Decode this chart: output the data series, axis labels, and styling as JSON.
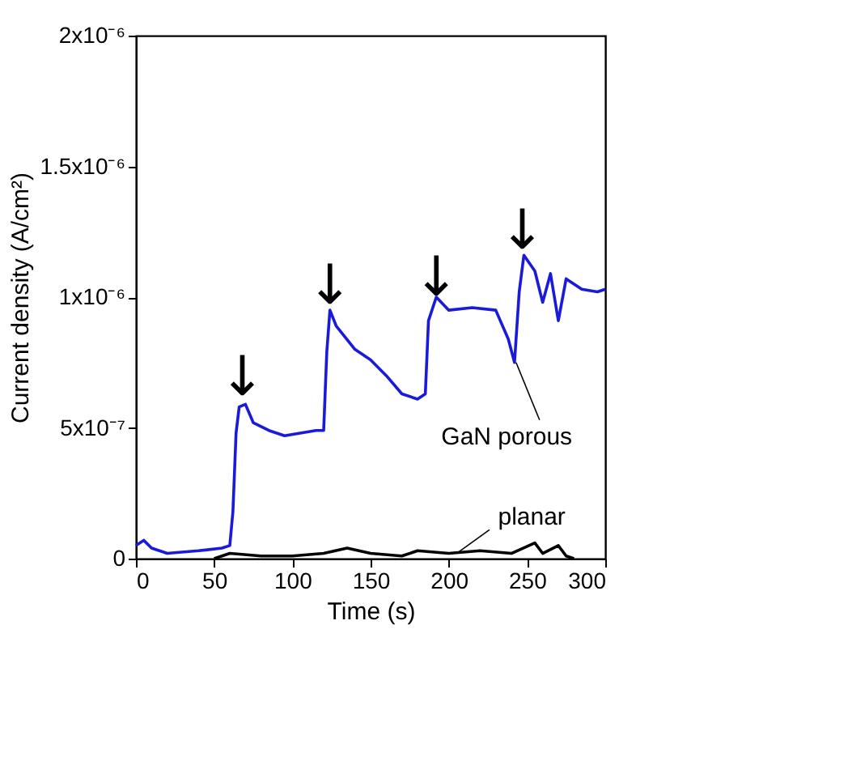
{
  "chart_data": {
    "type": "line",
    "xlabel": "Time (s)",
    "ylabel": "Current density (A/cm²)",
    "xlim": [
      0,
      300
    ],
    "xticks": [
      0,
      50,
      100,
      150,
      200,
      250,
      300
    ],
    "ylim": [
      0,
      2e-06
    ],
    "yticks": [
      0,
      {
        "value": 5e-07,
        "label": "5x10⁻⁷"
      },
      {
        "value": 1e-06,
        "label": "1x10⁻⁶"
      },
      {
        "value": 1.5e-06,
        "label": "1.5x10⁻⁶"
      },
      {
        "value": 2e-06,
        "label": "2x10⁻⁶"
      }
    ],
    "grid": false,
    "line_style": "solid",
    "marker": "none",
    "series": [
      {
        "color": "#1a1adb",
        "x": [
          0,
          5,
          10,
          20,
          40,
          55,
          60,
          62,
          64,
          66,
          70,
          75,
          85,
          95,
          105,
          115,
          120,
          122,
          124,
          128,
          140,
          150,
          160,
          170,
          180,
          185,
          187,
          192,
          200,
          215,
          230,
          238,
          242,
          245,
          248,
          255,
          260,
          265,
          270,
          275,
          285,
          295,
          300
        ],
        "values": [
          5e-08,
          7e-08,
          4e-08,
          2e-08,
          3e-08,
          4e-08,
          5e-08,
          1.8e-07,
          4.8e-07,
          5.8e-07,
          5.9e-07,
          5.2e-07,
          4.9e-07,
          4.7e-07,
          4.8e-07,
          4.9e-07,
          4.9e-07,
          7.9e-07,
          9.5e-07,
          8.9e-07,
          8e-07,
          7.6e-07,
          7e-07,
          6.3e-07,
          6.1e-07,
          6.3e-07,
          9.1e-07,
          1e-06,
          9.5e-07,
          9.6e-07,
          9.5e-07,
          8.4e-07,
          7.5e-07,
          1.02e-06,
          1.16e-06,
          1.1e-06,
          9.8e-07,
          1.09e-06,
          9.1e-07,
          1.07e-06,
          1.03e-06,
          1.02e-06,
          1.03e-06
        ]
      },
      {
        "color": "#000000",
        "x": [
          50,
          60,
          80,
          100,
          120,
          135,
          150,
          170,
          180,
          200,
          220,
          240,
          255,
          260,
          270,
          275,
          280
        ],
        "values": [
          0,
          2e-08,
          1e-08,
          1e-08,
          2e-08,
          4e-08,
          2e-08,
          1e-08,
          3e-08,
          2e-08,
          3e-08,
          2e-08,
          6e-08,
          2e-08,
          5e-08,
          1e-08,
          0
        ]
      }
    ],
    "annotations": [
      {
        "text": "GaN porous",
        "x": 243,
        "y": 7.5e-07
      },
      {
        "text": "planar",
        "x": 205,
        "y": 2e-08
      },
      {
        "text": "↓",
        "x": 68,
        "y": 6.2e-07
      },
      {
        "text": "↓",
        "x": 124,
        "y": 9.7e-07
      },
      {
        "text": "↓",
        "x": 192,
        "y": 1e-06
      },
      {
        "text": "↓",
        "x": 247,
        "y": 1.18e-06
      }
    ]
  }
}
